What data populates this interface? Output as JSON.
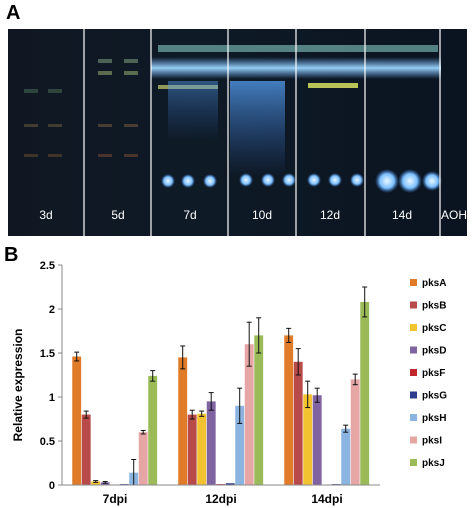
{
  "panel_a": {
    "letter": "A",
    "lanes": [
      "3d",
      "5d",
      "7d",
      "10d",
      "12d",
      "14d",
      "AOH"
    ]
  },
  "panel_b": {
    "letter": "B"
  },
  "chart_data": {
    "type": "bar",
    "categories": [
      "7dpi",
      "12dpi",
      "14dpi"
    ],
    "ylabel": "Relative expression",
    "ylim": [
      0,
      2.5
    ],
    "yticks": [
      "0",
      "0.5",
      "1",
      "1.5",
      "2",
      "2.5"
    ],
    "legend_position": "right",
    "grid": false,
    "series": [
      {
        "name": "pksA",
        "color": "#e07b2a",
        "values": [
          1.46,
          1.45,
          1.7
        ],
        "errors": [
          0.05,
          0.13,
          0.08
        ]
      },
      {
        "name": "pksB",
        "color": "#b84a4a",
        "values": [
          0.8,
          0.8,
          1.4
        ],
        "errors": [
          0.04,
          0.05,
          0.15
        ]
      },
      {
        "name": "pksC",
        "color": "#f2c230",
        "values": [
          0.04,
          0.81,
          1.03
        ],
        "errors": [
          0.01,
          0.03,
          0.15
        ]
      },
      {
        "name": "pksD",
        "color": "#8064a2",
        "values": [
          0.03,
          0.95,
          1.02
        ],
        "errors": [
          0.01,
          0.1,
          0.08
        ]
      },
      {
        "name": "pksF",
        "color": "#c0262c",
        "values": [
          0.0,
          0.01,
          0.0
        ],
        "errors": [
          0.0,
          0.0,
          0.0
        ]
      },
      {
        "name": "pksG",
        "color": "#2e3a8c",
        "values": [
          0.01,
          0.02,
          0.01
        ],
        "errors": [
          0.0,
          0.0,
          0.0
        ]
      },
      {
        "name": "pksH",
        "color": "#8cb4e0",
        "values": [
          0.14,
          0.9,
          0.64
        ],
        "errors": [
          0.15,
          0.2,
          0.04
        ]
      },
      {
        "name": "pksI",
        "color": "#e6a6a6",
        "values": [
          0.6,
          1.6,
          1.2
        ],
        "errors": [
          0.02,
          0.25,
          0.06
        ]
      },
      {
        "name": "pksJ",
        "color": "#9bbb59",
        "values": [
          1.24,
          1.7,
          2.08
        ],
        "errors": [
          0.06,
          0.2,
          0.17
        ]
      }
    ]
  }
}
